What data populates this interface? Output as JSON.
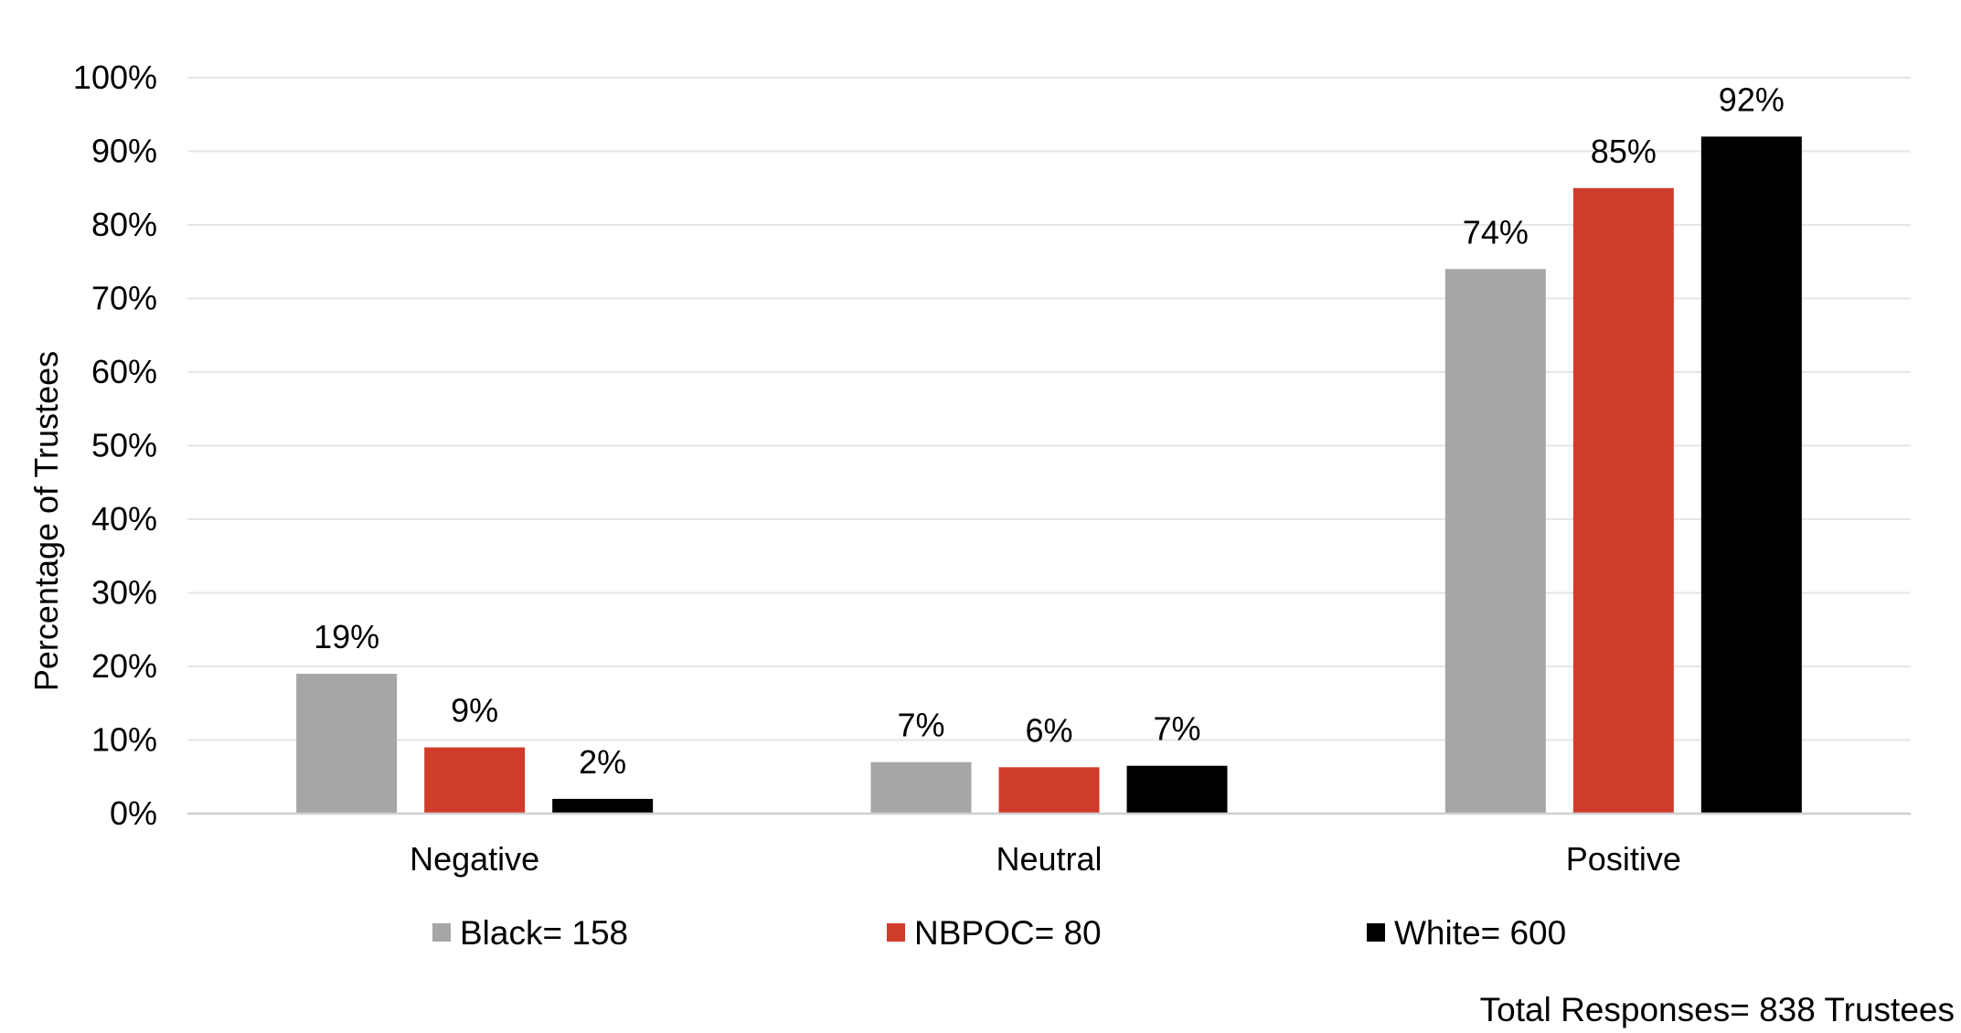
{
  "chart_data": {
    "type": "bar",
    "title": "",
    "xlabel": "",
    "ylabel": "Percentage of Trustees",
    "ylim": [
      0,
      100
    ],
    "yticks": [
      "0%",
      "10%",
      "20%",
      "30%",
      "40%",
      "50%",
      "60%",
      "70%",
      "80%",
      "90%",
      "100%"
    ],
    "grid": true,
    "legend_position": "bottom",
    "categories": [
      "Negative",
      "Neutral",
      "Positive"
    ],
    "series": [
      {
        "name": "Black= 158",
        "color": "#a6a6a6",
        "values": [
          19,
          7,
          74
        ],
        "labels": [
          "19%",
          "7%",
          "74%"
        ]
      },
      {
        "name": "NBPOC= 80",
        "color": "#d03c2a",
        "values": [
          9,
          6.3,
          85
        ],
        "labels": [
          "9%",
          "6%",
          "85%"
        ]
      },
      {
        "name": "White= 600",
        "color": "#000000",
        "values": [
          2,
          6.5,
          92
        ],
        "labels": [
          "2%",
          "7%",
          "92%"
        ]
      }
    ],
    "note": "Total Responses= 838 Trustees"
  }
}
